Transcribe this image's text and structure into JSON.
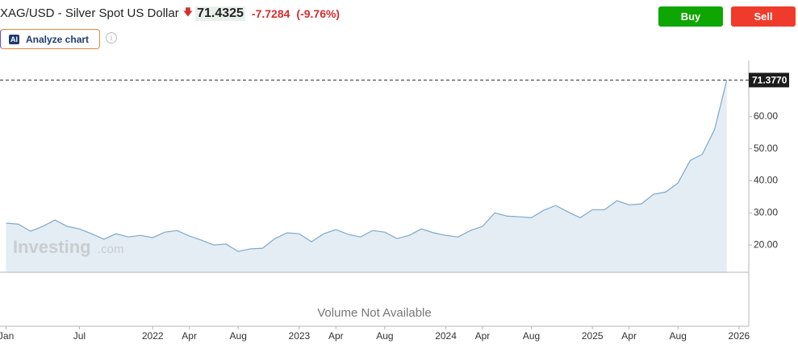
{
  "header": {
    "title": "XAG/USD - Silver Spot US Dollar",
    "price": "71.4325",
    "change": "-7.7284",
    "change_percent": "(-9.76%)"
  },
  "buttons": {
    "buy": "Buy",
    "sell": "Sell",
    "analyze": "Analyze chart",
    "ai_badge": "AI"
  },
  "watermark": {
    "brand": "Investing",
    "suffix": ".com"
  },
  "volume_note": "Volume Not Available",
  "chart_data": {
    "type": "area",
    "x": [
      0,
      1,
      2,
      3,
      4,
      5,
      6,
      7,
      8,
      9,
      10,
      11,
      12,
      13,
      14,
      15,
      16,
      17,
      18,
      19,
      20,
      21,
      22,
      23,
      24,
      25,
      26,
      27,
      28,
      29,
      30,
      31,
      32,
      33,
      34,
      35,
      36,
      37,
      38,
      39,
      40,
      41,
      42,
      43,
      44,
      45,
      46,
      47,
      48,
      49,
      50,
      51,
      52,
      53,
      54,
      55,
      56,
      57,
      58,
      59
    ],
    "values": [
      26.8,
      26.5,
      24.3,
      25.8,
      27.8,
      25.8,
      25.0,
      23.5,
      21.8,
      23.5,
      22.5,
      23.0,
      22.3,
      24.0,
      24.5,
      22.8,
      21.5,
      20.0,
      20.3,
      18.0,
      18.8,
      19.0,
      22.0,
      23.8,
      23.5,
      21.0,
      23.5,
      24.8,
      23.3,
      22.5,
      24.5,
      24.0,
      22.0,
      23.0,
      25.0,
      23.8,
      23.0,
      22.5,
      24.5,
      25.8,
      30.0,
      29.0,
      28.8,
      28.5,
      30.8,
      32.3,
      30.3,
      28.5,
      31.0,
      31.0,
      33.8,
      32.5,
      32.8,
      35.8,
      36.5,
      39.3,
      46.3,
      48.3,
      56.0,
      71.4
    ],
    "color": "#7ea8c9",
    "fill_color": "#e4edf4",
    "xlim": [
      -0.5,
      60.8
    ],
    "xticks": [
      {
        "value": 0,
        "label": "Jan"
      },
      {
        "value": 6,
        "label": "Jul"
      },
      {
        "value": 12,
        "label": "2022"
      },
      {
        "value": 15,
        "label": "Apr"
      },
      {
        "value": 19,
        "label": "Aug"
      },
      {
        "value": 24,
        "label": "2023"
      },
      {
        "value": 27,
        "label": "Apr"
      },
      {
        "value": 31,
        "label": "Aug"
      },
      {
        "value": 36,
        "label": "2024"
      },
      {
        "value": 39,
        "label": "Apr"
      },
      {
        "value": 43,
        "label": "Aug"
      },
      {
        "value": 48,
        "label": "2025"
      },
      {
        "value": 51,
        "label": "Apr"
      },
      {
        "value": 55,
        "label": "Aug"
      },
      {
        "value": 60,
        "label": "2026"
      }
    ],
    "ylim": [
      11.5,
      77.5
    ],
    "yticks": [
      {
        "value": 20,
        "label": "20.00"
      },
      {
        "value": 30,
        "label": "30.00"
      },
      {
        "value": 40,
        "label": "40.00"
      },
      {
        "value": 50,
        "label": "50.00"
      },
      {
        "value": 60,
        "label": "60.00"
      }
    ],
    "last_price": {
      "value": 71.377,
      "label": "71.3770"
    }
  }
}
